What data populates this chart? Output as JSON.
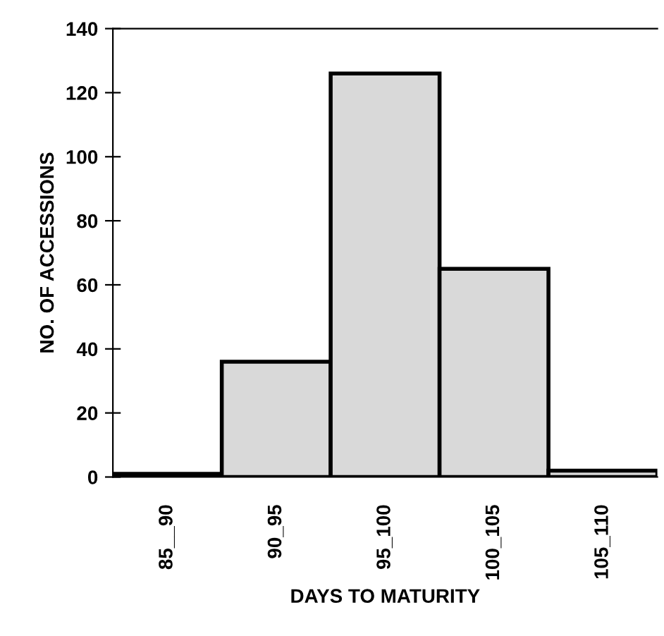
{
  "chart_data": {
    "type": "bar",
    "xlabel": "DAYS TO MATURITY",
    "ylabel": "NO. OF ACCESSIONS",
    "categories": [
      "85__90",
      "90_95",
      "95_100",
      "100_105",
      "105_110"
    ],
    "values": [
      1,
      36,
      126,
      65,
      2
    ],
    "color": "#d9d9d9",
    "ylim": [
      0,
      140
    ],
    "yticks": [
      0,
      20,
      40,
      60,
      80,
      100,
      120,
      140
    ],
    "grid": false
  }
}
